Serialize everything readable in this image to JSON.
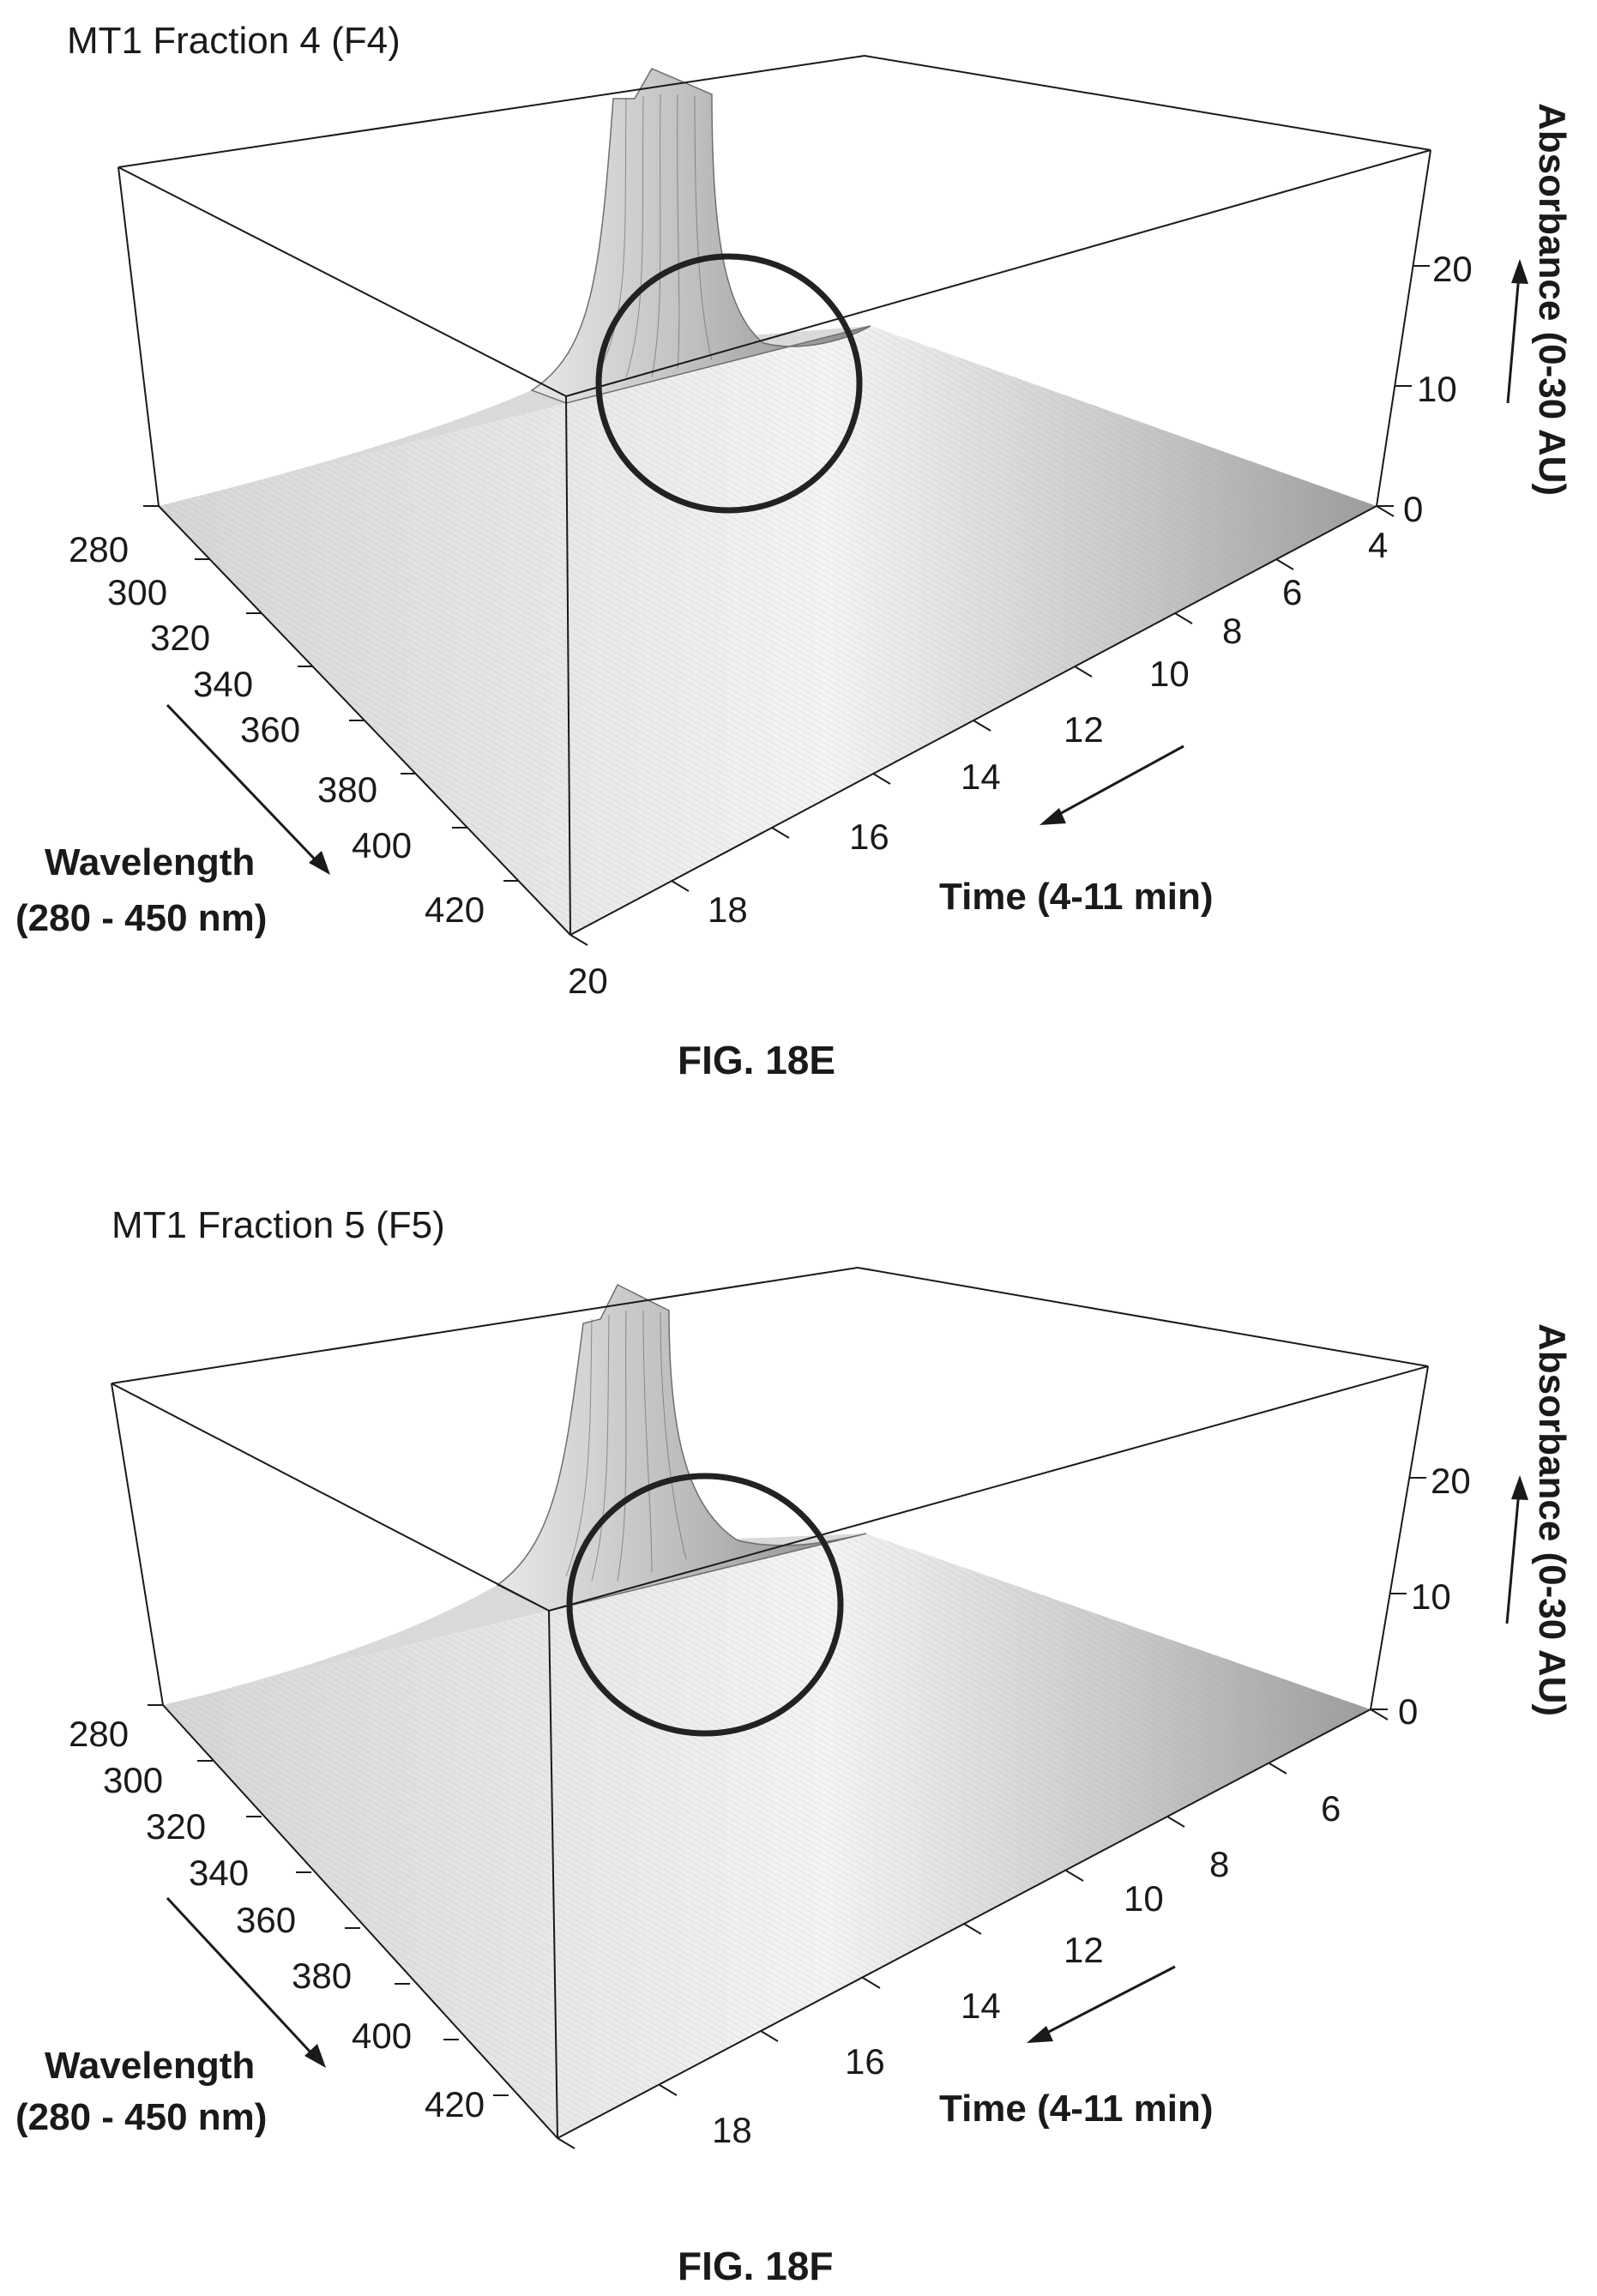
{
  "figures": [
    {
      "title": "MT1 Fraction 4 (F4)",
      "caption": "FIG. 18E",
      "z_axis_label": "Absorbance (0-30 AU)",
      "z_ticks": [
        "0",
        "10",
        "20"
      ],
      "time_axis_label": "Time (4-11 min)",
      "time_ticks": [
        "4",
        "6",
        "8",
        "10",
        "12",
        "14",
        "16",
        "18",
        "20"
      ],
      "wavelength_axis_label_line1": "Wavelength",
      "wavelength_axis_label_line2": "(280 - 450 nm)",
      "wavelength_ticks": [
        "280",
        "300",
        "320",
        "340",
        "360",
        "380",
        "400",
        "420"
      ]
    },
    {
      "title": "MT1 Fraction 5 (F5)",
      "caption": "FIG. 18F",
      "z_axis_label": "Absorbance (0-30 AU)",
      "z_ticks": [
        "0",
        "10",
        "20"
      ],
      "time_axis_label": "Time (4-11 min)",
      "time_ticks": [
        "6",
        "8",
        "10",
        "12",
        "14",
        "16",
        "18"
      ],
      "wavelength_axis_label_line1": "Wavelength",
      "wavelength_axis_label_line2": "(280 - 450 nm)",
      "wavelength_ticks": [
        "280",
        "300",
        "320",
        "340",
        "360",
        "380",
        "400",
        "420"
      ]
    }
  ],
  "chart_data": [
    {
      "type": "surface",
      "title": "MT1 Fraction 4 (F4)",
      "x_label": "Time (4-11 min)",
      "y_label": "Wavelength (280 - 450 nm)",
      "z_label": "Absorbance (0-30 AU)",
      "zlim": [
        0,
        30
      ],
      "peak": {
        "time": 6,
        "wavelength": 280,
        "absorbance": 30
      },
      "annotation": "circle around base of peak"
    },
    {
      "type": "surface",
      "title": "MT1 Fraction 5 (F5)",
      "x_label": "Time (4-11 min)",
      "y_label": "Wavelength (280 - 450 nm)",
      "z_label": "Absorbance (0-30 AU)",
      "zlim": [
        0,
        30
      ],
      "peak": {
        "time": 6,
        "wavelength": 280,
        "absorbance": 30
      },
      "annotation": "circle around base of peak"
    }
  ]
}
